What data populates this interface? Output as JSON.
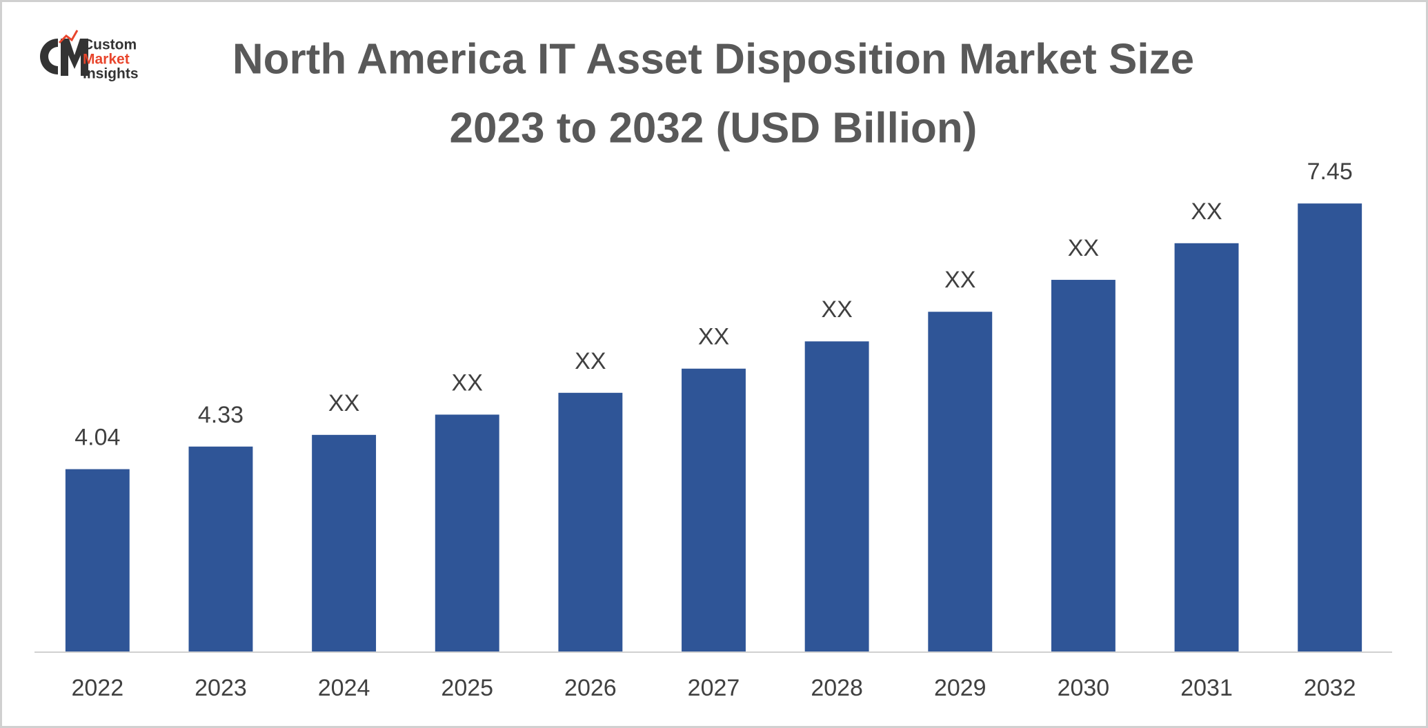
{
  "brand": [
    "Custom",
    "Market",
    "Insights"
  ],
  "chart_data": {
    "type": "bar",
    "title": [
      "North America IT Asset Disposition Market Size",
      "2023 to 2032 (USD Billion)"
    ],
    "categories": [
      "2022",
      "2023",
      "2024",
      "2025",
      "2026",
      "2027",
      "2028",
      "2029",
      "2030",
      "2031",
      "2032"
    ],
    "values": [
      4.04,
      4.33,
      4.48,
      4.74,
      5.02,
      5.33,
      5.68,
      6.06,
      6.47,
      6.94,
      7.45
    ],
    "value_labels": [
      "4.04",
      "4.33",
      "XX",
      "XX",
      "XX",
      "XX",
      "XX",
      "XX",
      "XX",
      "XX",
      "7.45"
    ],
    "color": "#2f5597",
    "ylim": [
      1.7,
      8
    ]
  }
}
